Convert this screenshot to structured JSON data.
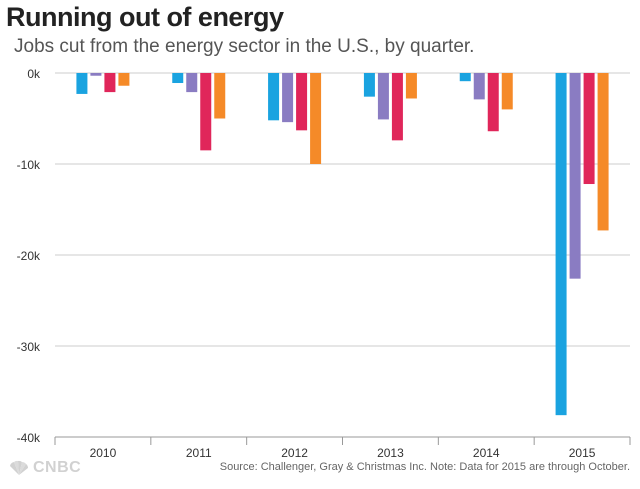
{
  "title": "Running out of energy",
  "subtitle": "Jobs cut from the energy sector in the U.S., by quarter.",
  "source": "Source: Challenger, Gray & Christmas Inc. Note: Data for 2015 are through October.",
  "logo": {
    "text": "CNBC",
    "icon": "peacock-icon"
  },
  "colors": {
    "q1": "#1aa3e0",
    "q2": "#8a7cc2",
    "q3": "#e0265a",
    "q4": "#f58a28",
    "axis": "#999999",
    "grid": "#cccccc"
  },
  "chart_data": {
    "type": "bar",
    "categories": [
      "2010",
      "2011",
      "2012",
      "2013",
      "2014",
      "2015"
    ],
    "series": [
      {
        "values": [
          -2300,
          -1100,
          -5200,
          -2600,
          -900,
          -37600
        ]
      },
      {
        "values": [
          -300,
          -2100,
          -5400,
          -5100,
          -2900,
          -22600
        ]
      },
      {
        "values": [
          -2100,
          -8500,
          -6300,
          -7400,
          -6400,
          -12200
        ]
      },
      {
        "values": [
          -1400,
          -5000,
          -10000,
          -2800,
          -4000,
          -17300
        ]
      }
    ],
    "yticks": [
      "0k",
      "-10k",
      "-20k",
      "-30k",
      "-40k"
    ],
    "ytick_values": [
      0,
      -10000,
      -20000,
      -30000,
      -40000
    ],
    "ylim": [
      -40000,
      0
    ],
    "grid": true
  }
}
